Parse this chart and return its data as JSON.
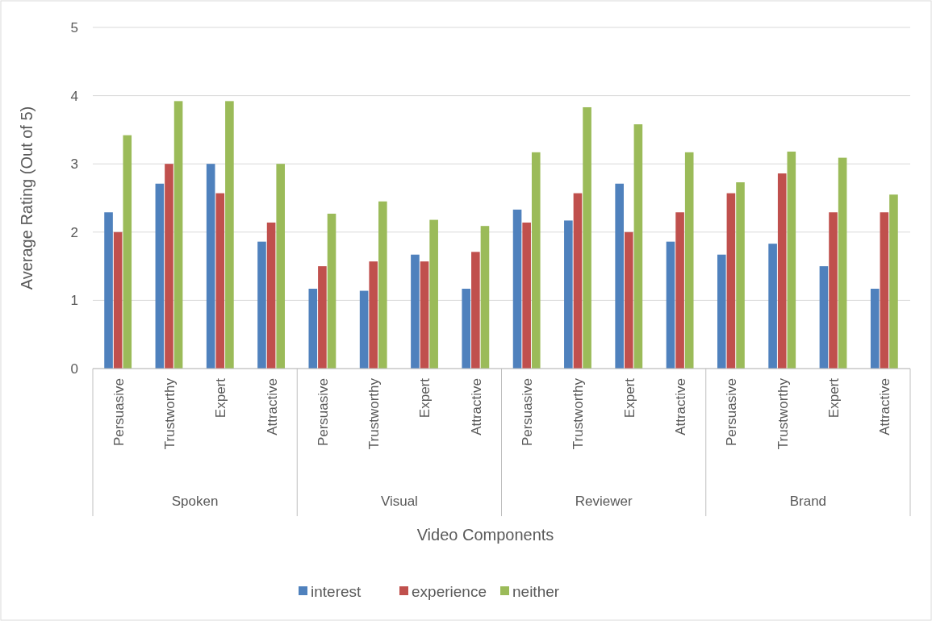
{
  "chart_data": {
    "type": "bar",
    "xlabel": "Video Components",
    "ylabel": "Average Rating (Out of 5)",
    "categories": [
      "Persuasive",
      "Trustworthy",
      "Expert",
      "Attractive",
      "Persuasive",
      "Trustworthy",
      "Expert",
      "Attractive",
      "Persuasive",
      "Trustworthy",
      "Expert",
      "Attractive",
      "Persuasive",
      "Trustworthy",
      "Expert",
      "Attractive"
    ],
    "annotations": [
      "Spoken",
      "Visual",
      "Reviewer",
      "Brand"
    ],
    "series": [
      {
        "name": "interest",
        "color": "#4f81bd",
        "values": [
          2.29,
          2.71,
          3.0,
          1.86,
          1.17,
          1.14,
          1.67,
          1.17,
          2.33,
          2.17,
          2.71,
          1.86,
          1.67,
          1.83,
          1.5,
          1.17
        ]
      },
      {
        "name": "experience",
        "color": "#c0504d",
        "values": [
          2.0,
          3.0,
          2.57,
          2.14,
          1.5,
          1.57,
          1.57,
          1.71,
          2.14,
          2.57,
          2.0,
          2.29,
          2.57,
          2.86,
          2.29,
          2.29
        ]
      },
      {
        "name": "neither",
        "color": "#9bbb59",
        "values": [
          3.42,
          3.92,
          3.92,
          3.0,
          2.27,
          2.45,
          2.18,
          2.09,
          3.17,
          3.83,
          3.58,
          3.17,
          2.73,
          3.18,
          3.09,
          2.55
        ]
      }
    ],
    "ylim": [
      0,
      5
    ],
    "yticks": [
      0,
      1,
      2,
      3,
      4,
      5
    ],
    "grid": "y",
    "legend": "bottom"
  }
}
